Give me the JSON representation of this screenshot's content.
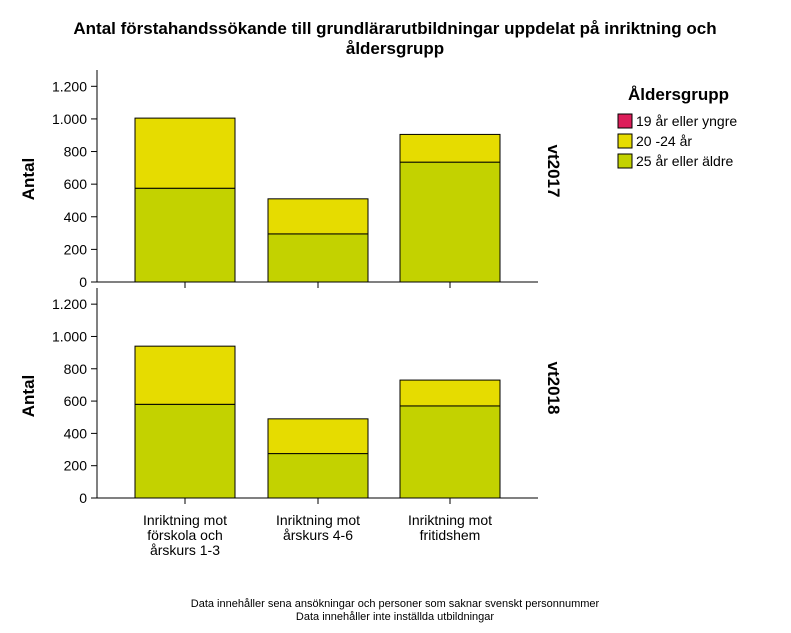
{
  "chart_data": {
    "type": "bar",
    "stacked": true,
    "title_lines": [
      "Antal förstahandssökande till grundlärarutbildningar uppdelat på inriktning och",
      "åldersgrupp"
    ],
    "ylabel": "Antal",
    "ylim": [
      0,
      1300
    ],
    "yticks": [
      0,
      200,
      400,
      600,
      800,
      1000,
      1200
    ],
    "ytick_labels": [
      "0",
      "200",
      "400",
      "600",
      "800",
      "1.000",
      "1.200"
    ],
    "categories": [
      [
        "Inriktning mot",
        "förskola och",
        "årskurs 1-3"
      ],
      [
        "Inriktning mot",
        "årskurs 4-6"
      ],
      [
        "Inriktning mot",
        "fritidshem"
      ]
    ],
    "legend": {
      "title": "Åldersgrupp",
      "position": "right",
      "entries": [
        {
          "name": "19 år eller yngre",
          "color": "#dc1e5a"
        },
        {
          "name": "20 -24 år",
          "color": "#e6dc00"
        },
        {
          "name": "25 år eller äldre",
          "color": "#c3d200"
        }
      ]
    },
    "panels": [
      {
        "label": "vt2017",
        "series": [
          {
            "name": "19 år eller yngre",
            "values": [
              0,
              0,
              0
            ]
          },
          {
            "name": "20 -24 år",
            "values": [
              430,
              215,
              170
            ]
          },
          {
            "name": "25 år eller äldre",
            "values": [
              575,
              295,
              735
            ]
          }
        ]
      },
      {
        "label": "vt2018",
        "series": [
          {
            "name": "19 år eller yngre",
            "values": [
              0,
              0,
              0
            ]
          },
          {
            "name": "20 -24 år",
            "values": [
              360,
              215,
              160
            ]
          },
          {
            "name": "25 år eller äldre",
            "values": [
              580,
              275,
              570
            ]
          }
        ]
      }
    ],
    "footnotes": [
      "Data innehåller sena ansökningar och personer som saknar svenskt personnummer",
      "Data innehåller inte inställda utbildningar"
    ]
  }
}
